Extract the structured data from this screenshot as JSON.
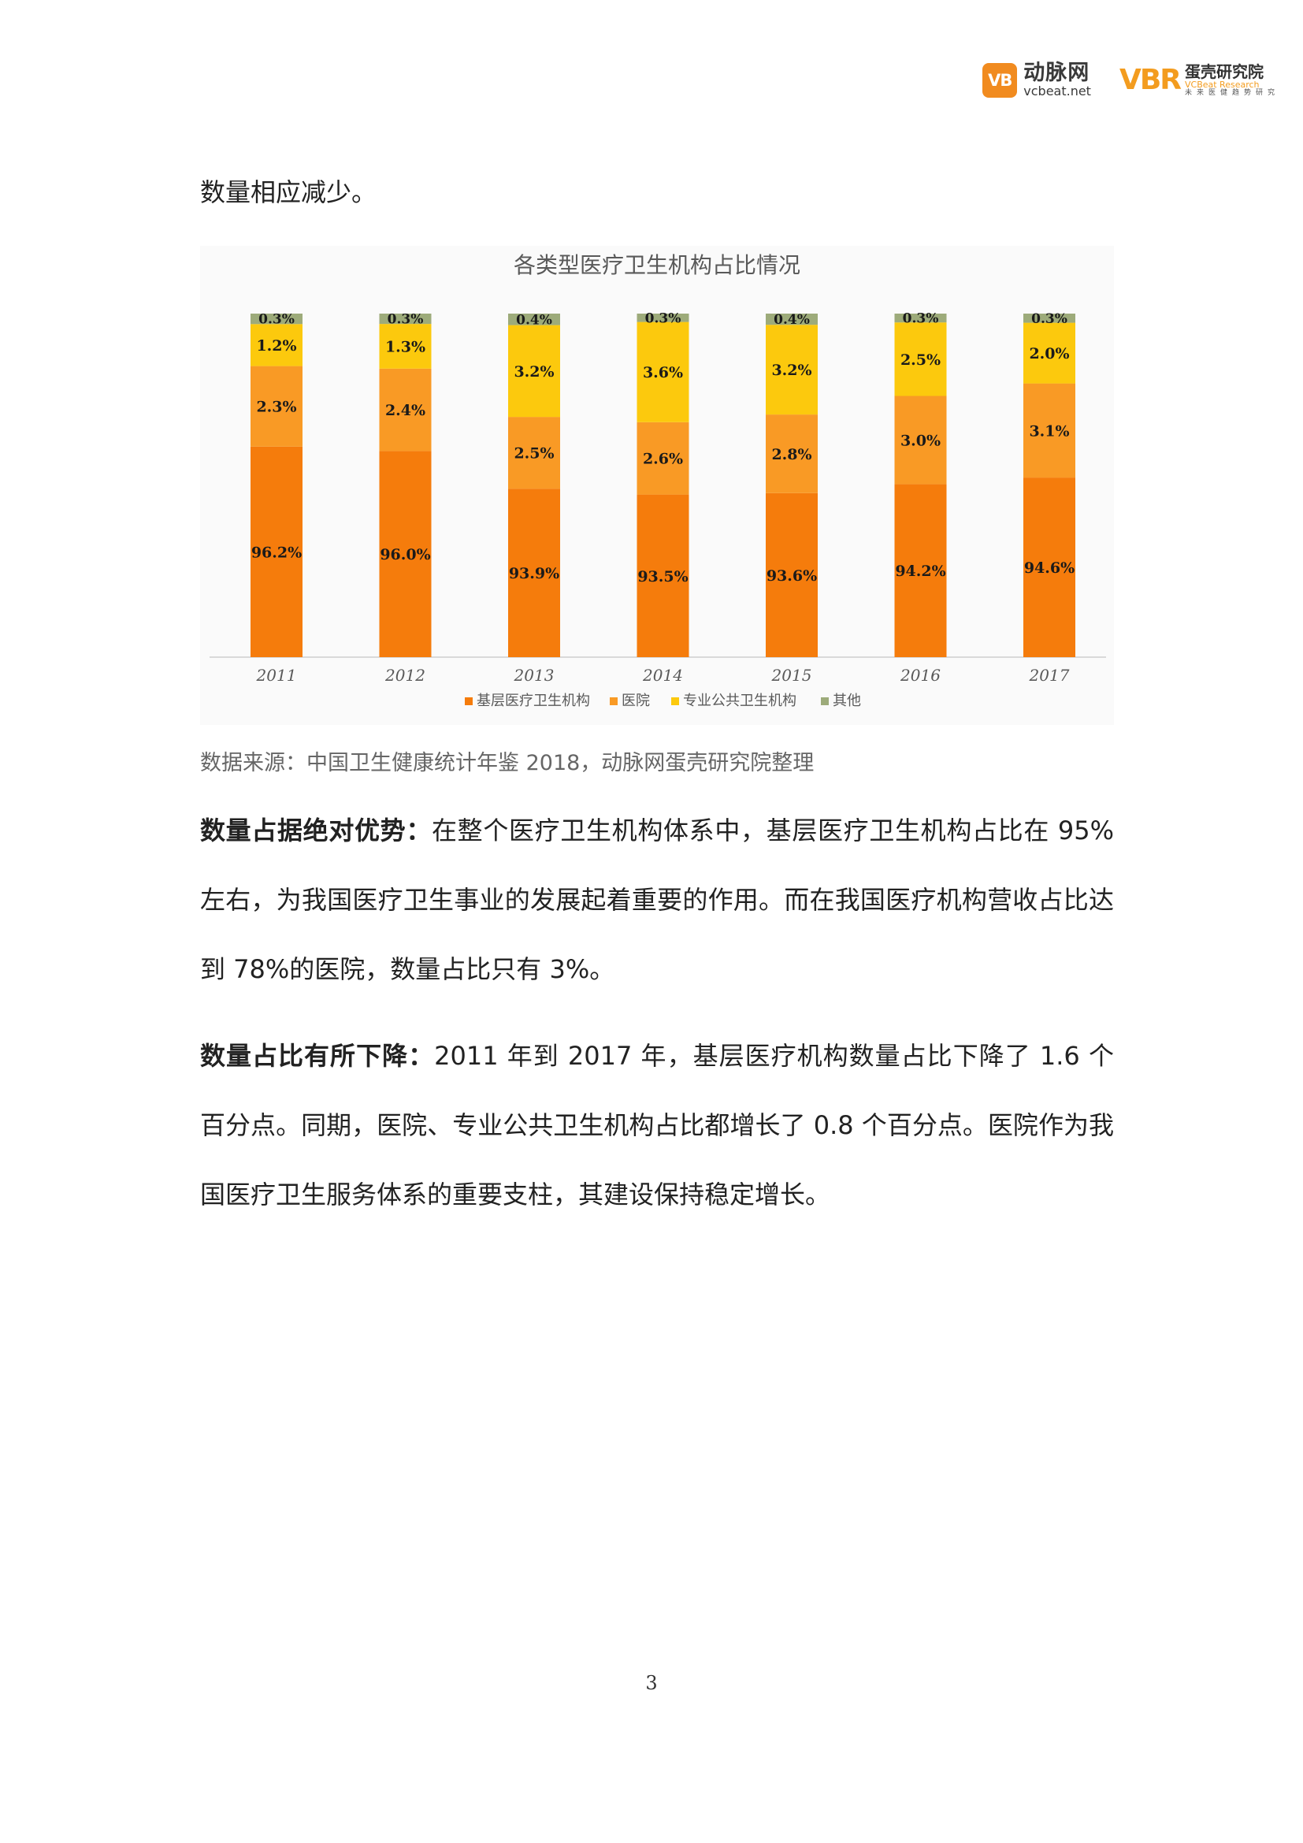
{
  "header": {
    "vcbeat_badge": "VB",
    "vcbeat_name": "动脉网",
    "vcbeat_url": "vcbeat.net",
    "research_mark": "VBR",
    "research_name": "蛋壳研究院",
    "research_en": "VCBeat Research",
    "research_tagline": "未来医健趋势研究"
  },
  "intro_text": "数量相应减少。",
  "source_note": "数据来源：中国卫生健康统计年鉴 2018，动脉网蛋壳研究院整理",
  "paragraph1": {
    "lead": "数量占据绝对优势：",
    "body": "在整个医疗卫生机构体系中，基层医疗卫生机构占比在 95%左右，为我国医疗卫生事业的发展起着重要的作用。而在我国医疗机构营收占比达到 78%的医院，数量占比只有 3%。"
  },
  "paragraph2": {
    "lead": "数量占比有所下降：",
    "body": "2011 年到 2017 年，基层医疗机构数量占比下降了 1.6 个百分点。同期，医院、专业公共卫生机构占比都增长了 0.8 个百分点。医院作为我国医疗卫生服务体系的重要支柱，其建设保持稳定增长。"
  },
  "page_number": "3",
  "chart_data": {
    "type": "bar",
    "stacked": true,
    "title": "各类型医疗卫生机构占比情况",
    "xlabel": "",
    "ylabel": "",
    "categories": [
      "2011",
      "2012",
      "2013",
      "2014",
      "2015",
      "2016",
      "2017"
    ],
    "series": [
      {
        "name": "基层医疗卫生机构",
        "color": "#f57c0c",
        "values": [
          96.2,
          96.0,
          93.9,
          93.5,
          93.6,
          94.2,
          94.6
        ],
        "labels": [
          "96.2%",
          "96.0%",
          "93.9%",
          "93.5%",
          "93.6%",
          "94.2%",
          "94.6%"
        ]
      },
      {
        "name": "医院",
        "color": "#f99a25",
        "values": [
          2.3,
          2.4,
          2.5,
          2.6,
          2.8,
          3.0,
          3.1
        ],
        "labels": [
          "2.3%",
          "2.4%",
          "2.5%",
          "2.6%",
          "2.8%",
          "3.0%",
          "3.1%"
        ]
      },
      {
        "name": "专业公共卫生机构",
        "color": "#fcc90d",
        "values": [
          1.2,
          1.3,
          3.2,
          3.6,
          3.2,
          2.5,
          2.0
        ],
        "labels": [
          "1.2%",
          "1.3%",
          "3.2%",
          "3.6%",
          "3.2%",
          "2.5%",
          "2.0%"
        ]
      },
      {
        "name": "其他",
        "color": "#9dab7a",
        "values": [
          0.3,
          0.3,
          0.4,
          0.3,
          0.4,
          0.3,
          0.3
        ],
        "labels": [
          "0.3%",
          "0.3%",
          "0.4%",
          "0.3%",
          "0.4%",
          "0.3%",
          "0.3%"
        ]
      }
    ],
    "legend_position": "bottom",
    "grid": false
  }
}
